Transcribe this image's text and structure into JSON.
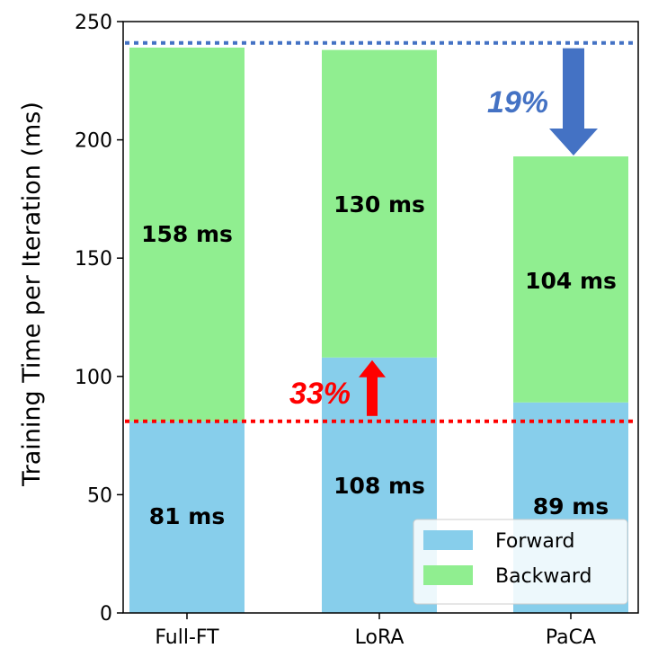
{
  "chart_data": {
    "type": "bar",
    "stacked": true,
    "categories": [
      "Full-FT",
      "LoRA",
      "PaCA"
    ],
    "series": [
      {
        "name": "Forward",
        "values": [
          81,
          108,
          89
        ],
        "labels": [
          "81 ms",
          "108 ms",
          "89 ms"
        ],
        "color": "#87ceeb"
      },
      {
        "name": "Backward",
        "values": [
          158,
          130,
          104
        ],
        "labels": [
          "158 ms",
          "130 ms",
          "104 ms"
        ],
        "color": "#90ee90"
      }
    ],
    "xlabel": "",
    "ylabel": "Training Time per Iteration (ms)",
    "ylim": [
      0,
      250
    ],
    "yticks": [
      0,
      50,
      100,
      150,
      200,
      250
    ],
    "grid": false,
    "legend": {
      "position": "bottom-right",
      "entries": [
        "Forward",
        "Backward"
      ]
    },
    "reference_lines": [
      {
        "y": 241,
        "color": "#4472c4",
        "style": "dotted"
      },
      {
        "y": 81,
        "color": "#ff0000",
        "style": "dotted"
      }
    ],
    "annotations": [
      {
        "text": "19%",
        "color": "#4472c4",
        "arrow": "down",
        "category": "PaCA",
        "from": 241,
        "to": 193
      },
      {
        "text": "33%",
        "color": "#ff0000",
        "arrow": "up",
        "category": "LoRA",
        "from": 81,
        "to": 108
      }
    ]
  }
}
